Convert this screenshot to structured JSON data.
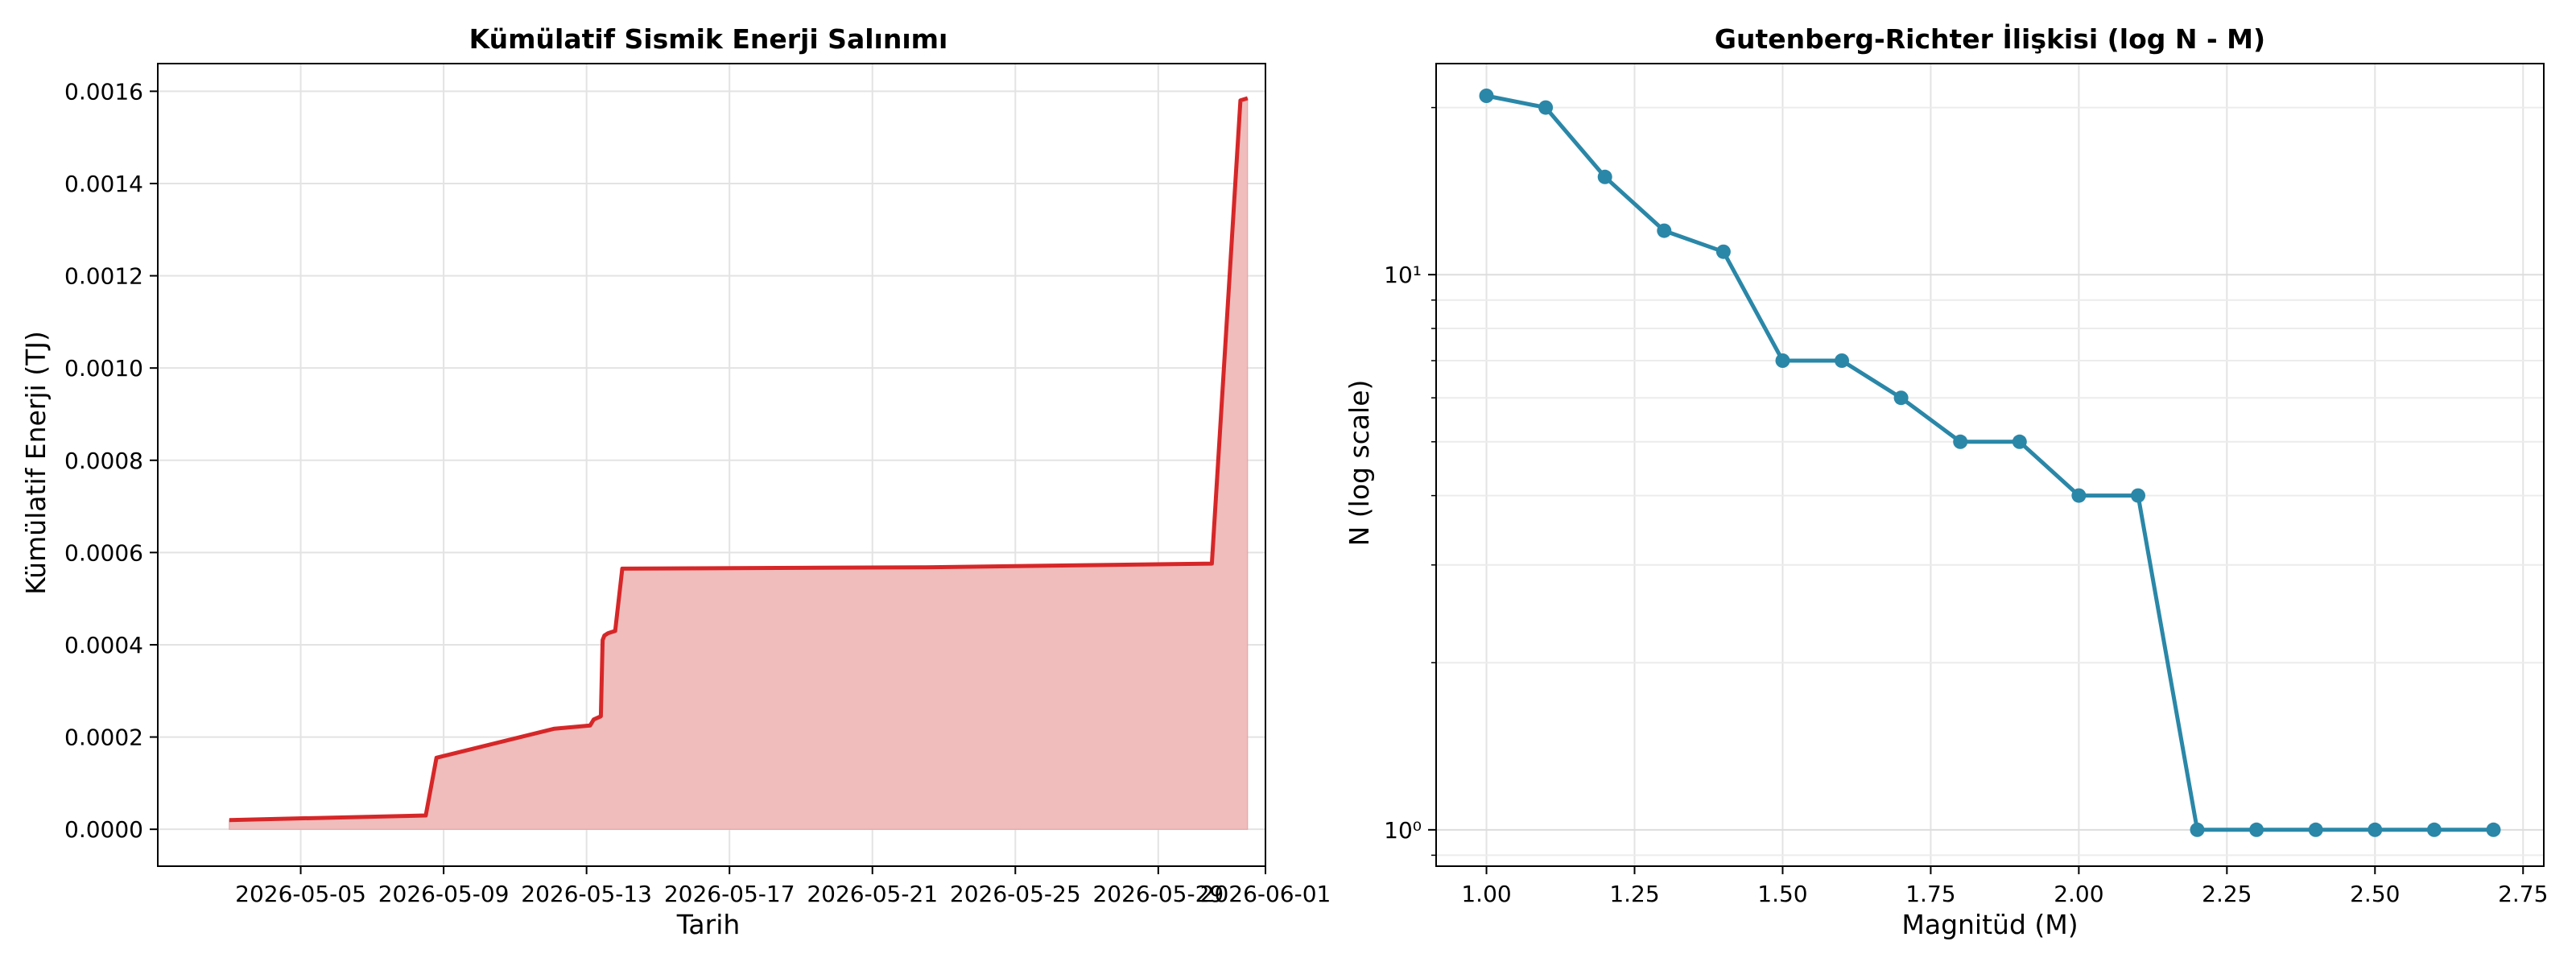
{
  "chart_data": [
    {
      "type": "area",
      "title": "Kümülatif Sismik Enerji Salınımı",
      "xlabel": "Tarih",
      "ylabel": "Kümülatif Enerji (TJ)",
      "x_ticks": [
        "2026-05-05",
        "2026-05-09",
        "2026-05-13",
        "2026-05-17",
        "2026-05-21",
        "2026-05-25",
        "2026-05-29",
        "2026-06-01"
      ],
      "y_ticks": [
        "0.0000",
        "0.0002",
        "0.0004",
        "0.0006",
        "0.0008",
        "0.0010",
        "0.0012",
        "0.0014",
        "0.0016"
      ],
      "xlim": [
        "2026-05-01",
        "2026-06-01"
      ],
      "ylim": [
        -8e-05,
        0.00166
      ],
      "grid": true,
      "colors": {
        "line": "#d62728",
        "fill": "#f1bcbc"
      },
      "series": [
        {
          "x": [
            "2026-05-03",
            "2026-05-08 12:00",
            "2026-05-08 19:12",
            "2026-05-12 02:24",
            "2026-05-13 02:24",
            "2026-05-13 04:48",
            "2026-05-13 09:36",
            "2026-05-13 10:48",
            "2026-05-13 12:00",
            "2026-05-13 14:24",
            "2026-05-13 19:12",
            "2026-05-14 00:00",
            "2026-05-22 12:00",
            "2026-05-30 12:00",
            "2026-05-31 07:12",
            "2026-05-31 12:00"
          ],
          "y": [
            2e-05,
            3e-05,
            0.000155,
            0.000218,
            0.000225,
            0.000238,
            0.000245,
            0.00041,
            0.00042,
            0.000425,
            0.00043,
            0.000565,
            0.000568,
            0.000576,
            0.00158,
            0.001585
          ]
        }
      ]
    },
    {
      "type": "line",
      "title": "Gutenberg-Richter İlişkisi (log N - M)",
      "xlabel": "Magnitüd (M)",
      "ylabel": "N (log scale)",
      "x_ticks": [
        "1.00",
        "1.25",
        "1.50",
        "1.75",
        "2.00",
        "2.25",
        "2.50",
        "2.75"
      ],
      "y_ticks": [
        "10⁰",
        "10¹"
      ],
      "xlim": [
        0.915,
        2.785
      ],
      "ylim": [
        0.86,
        24
      ],
      "y_scale": "log",
      "grid": true,
      "colors": {
        "line": "#2a87a8"
      },
      "series": [
        {
          "x": [
            1.0,
            1.1,
            1.2,
            1.3,
            1.4,
            1.5,
            1.6,
            1.7,
            1.8,
            1.9,
            2.0,
            2.1,
            2.2,
            2.3,
            2.4,
            2.5,
            2.6,
            2.7
          ],
          "y": [
            21,
            20,
            15,
            12,
            11,
            7,
            7,
            6,
            5,
            5,
            4,
            4,
            1,
            1,
            1,
            1,
            1,
            1
          ]
        }
      ]
    }
  ]
}
